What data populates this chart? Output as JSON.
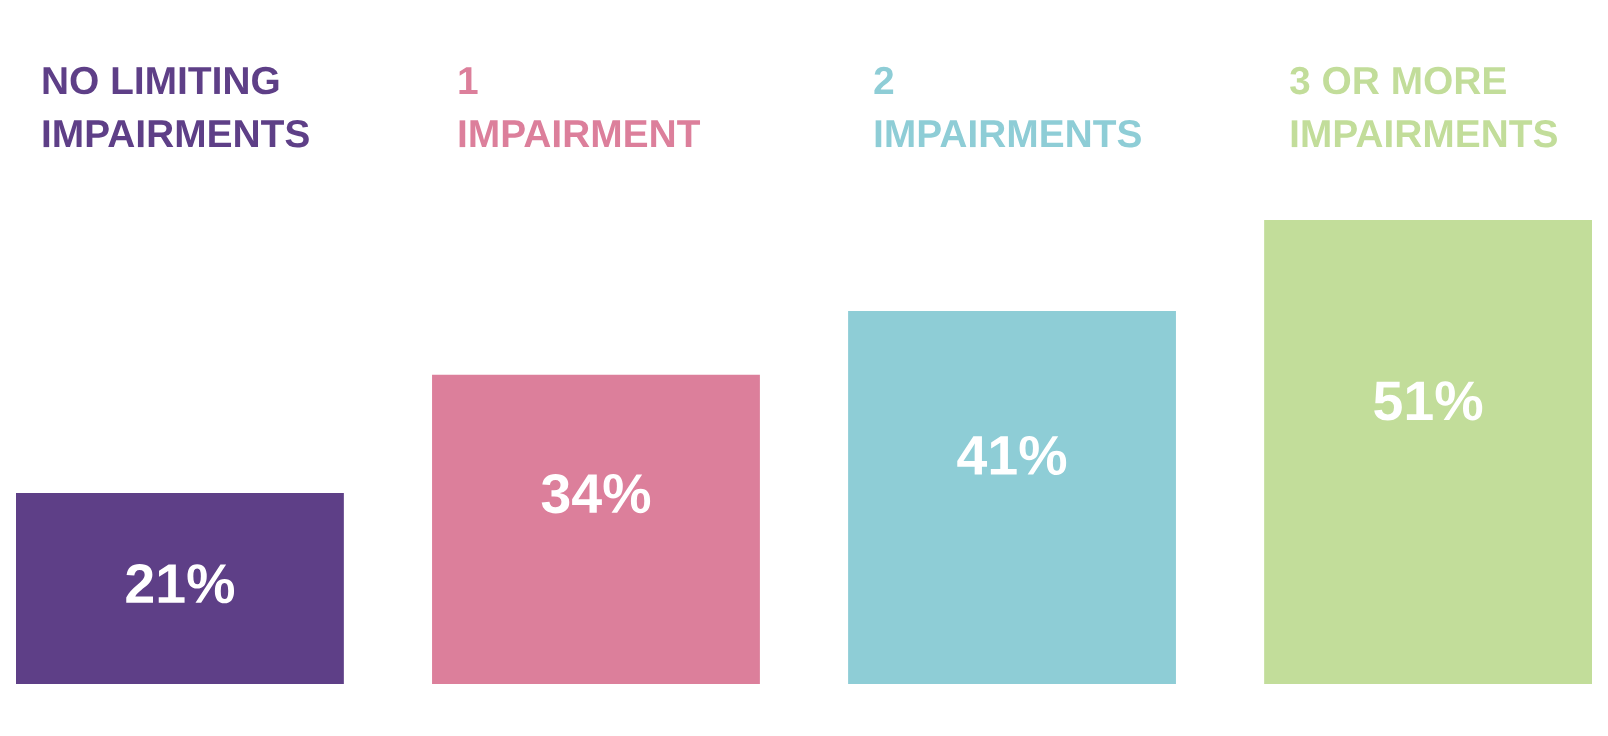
{
  "chart_data": {
    "type": "bar",
    "categories": [
      "NO LIMITING IMPAIRMENTS",
      "1 IMPAIRMENT",
      "2 IMPAIRMENTS",
      "3 OR MORE IMPAIRMENTS"
    ],
    "values": [
      21,
      34,
      41,
      51
    ],
    "value_labels": [
      "21%",
      "34%",
      "41%",
      "51%"
    ],
    "colors": [
      "#5e3f87",
      "#dc7f9b",
      "#8ecdd6",
      "#c2dd9a"
    ],
    "legend": false
  }
}
